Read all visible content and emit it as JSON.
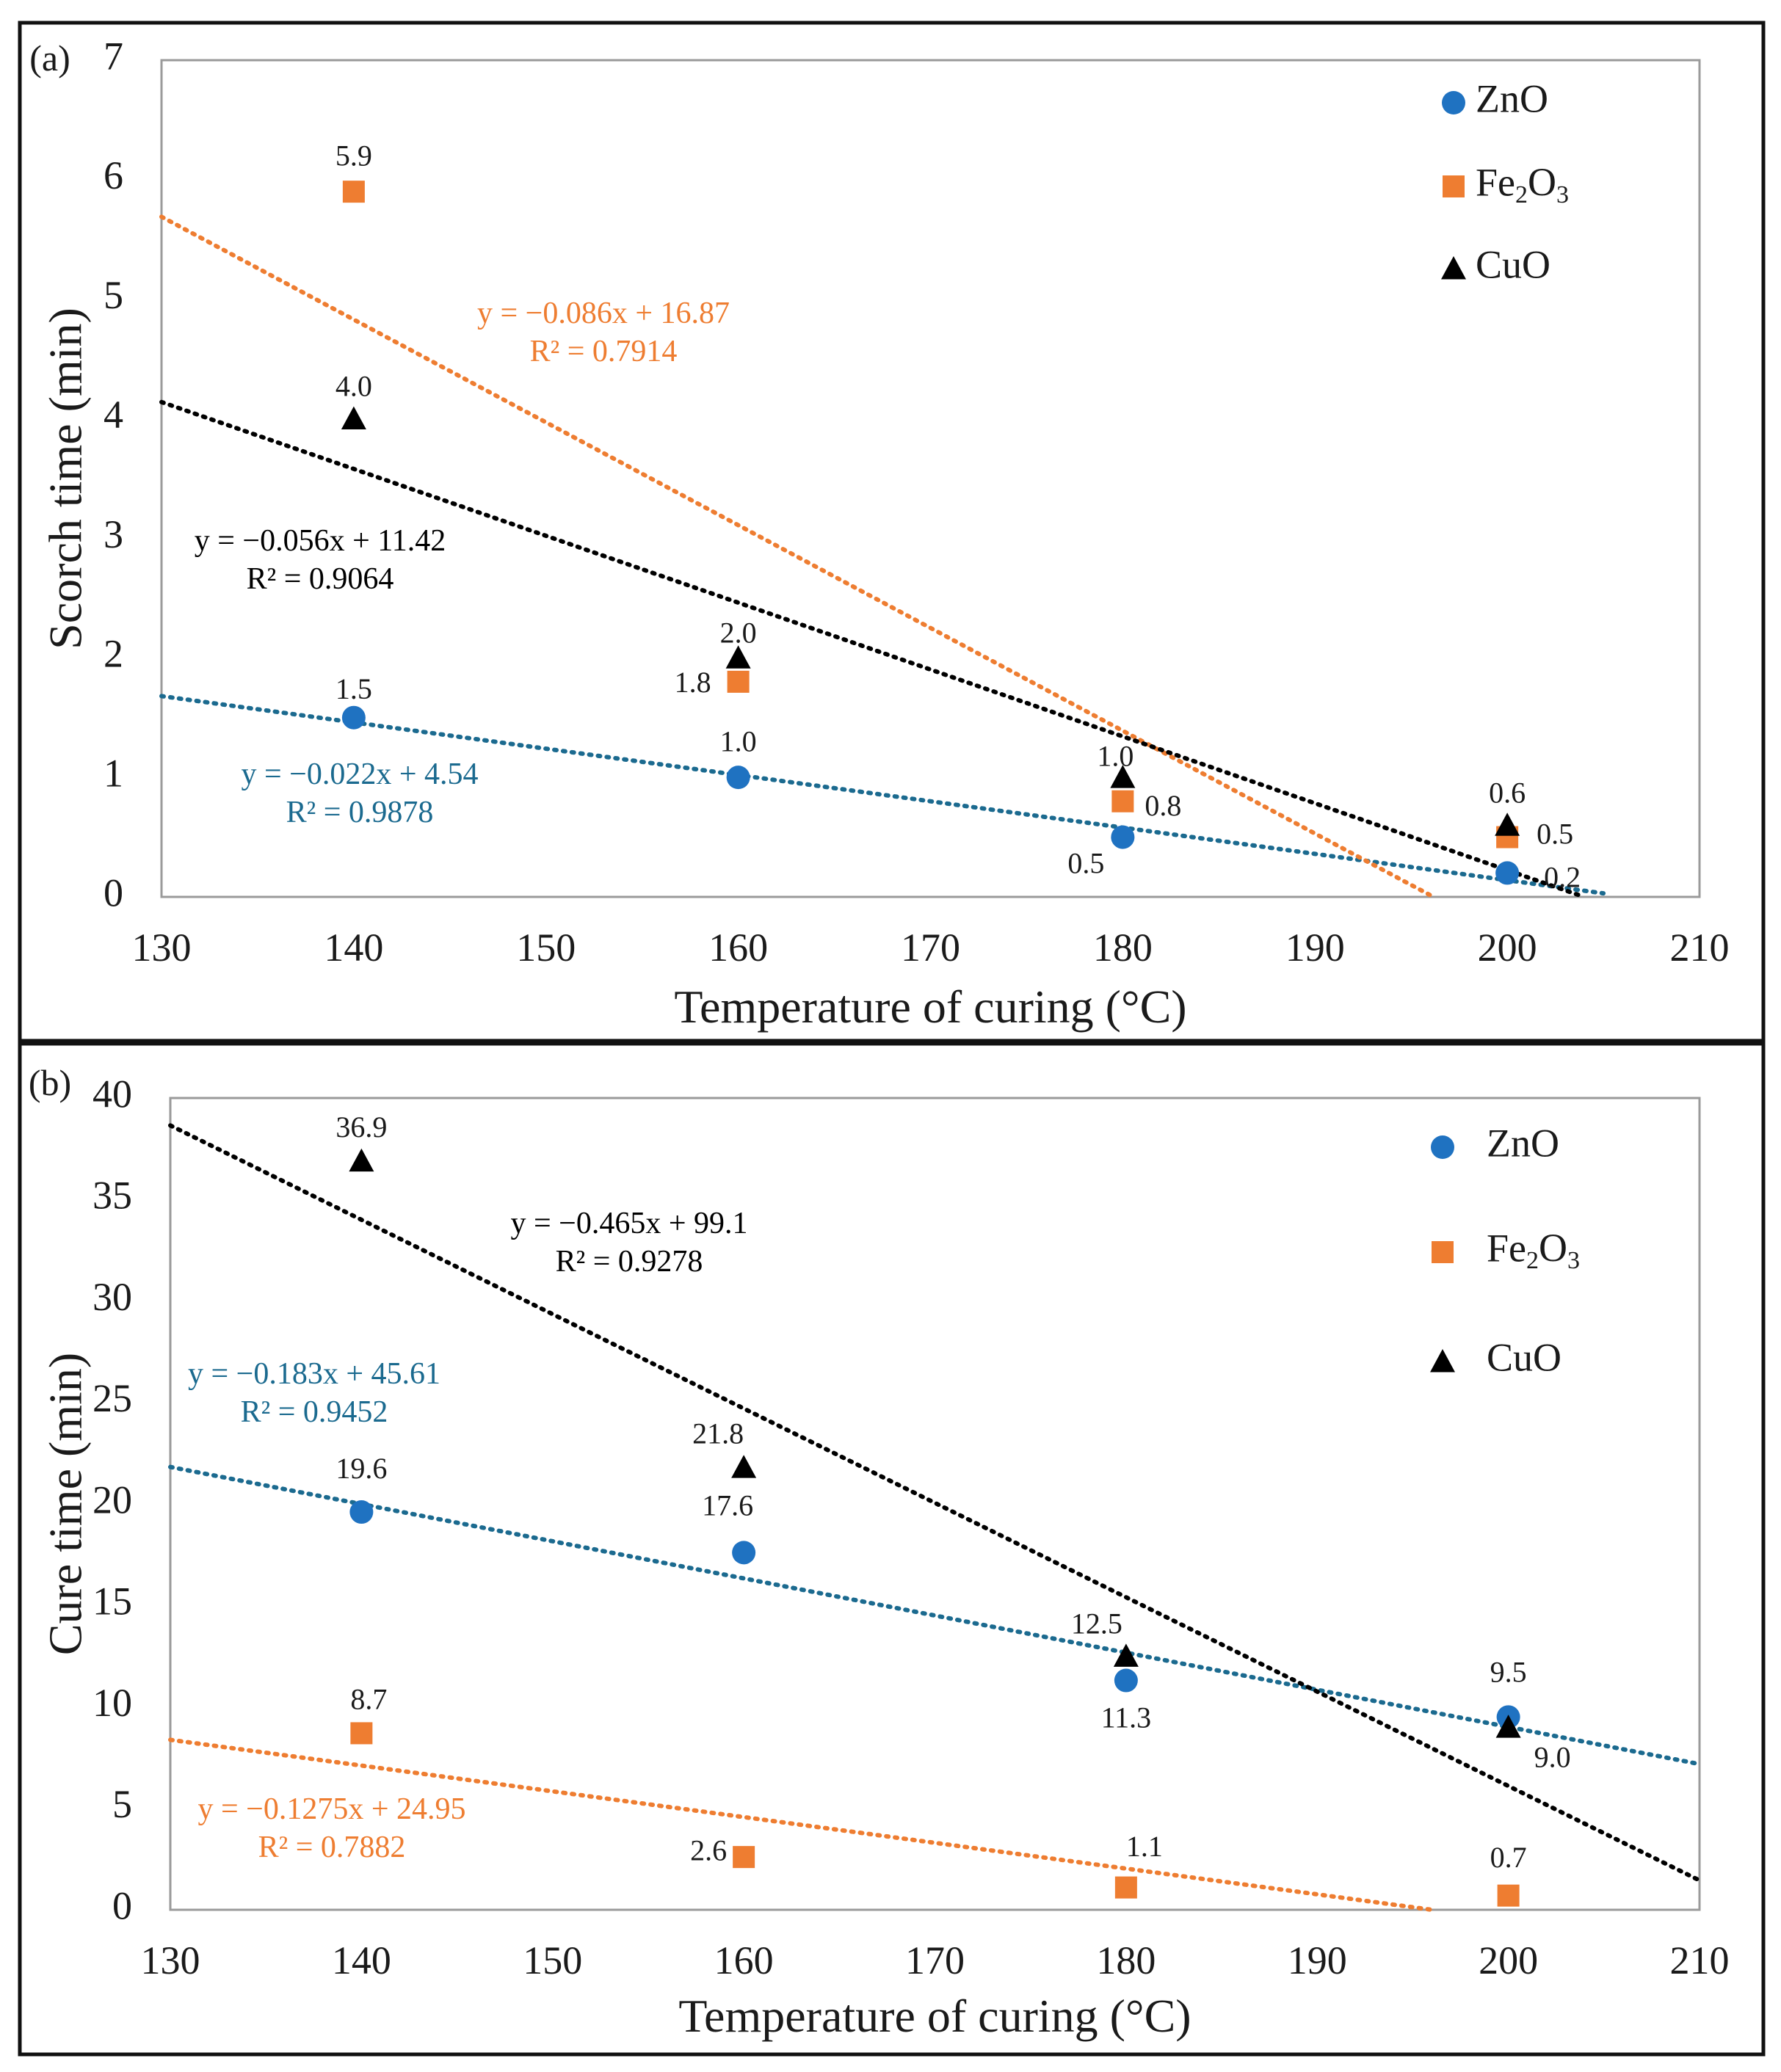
{
  "chart_data": [
    {
      "panel_label": "(a)",
      "type": "scatter",
      "xlabel": "Temperature of curing (°C)",
      "ylabel": "Scorch time (min)",
      "xlim": [
        130,
        210
      ],
      "ylim": [
        0,
        7
      ],
      "x_ticks": [
        "130",
        "140",
        "150",
        "160",
        "170",
        "180",
        "190",
        "200",
        "210"
      ],
      "y_ticks": [
        "0",
        "1",
        "2",
        "3",
        "4",
        "5",
        "6",
        "7"
      ],
      "legend_placement": "top-right",
      "series": [
        {
          "name": "ZnO",
          "name_sub": "",
          "name_tail": "",
          "marker": "circle",
          "color": "#1f72c1",
          "trend_color": "#1b6a8f",
          "x": [
            140,
            160,
            180,
            200
          ],
          "y": [
            1.5,
            1.0,
            0.5,
            0.2
          ],
          "labels": [
            "1.5",
            "1.0",
            "0.5",
            "0.2"
          ],
          "trend": {
            "slope": -0.022,
            "intercept": 4.54,
            "x_start": 130,
            "x_end": 205
          },
          "equation": "y = −0.022x + 4.54",
          "r2": "R² = 0.9878"
        },
        {
          "name": "Fe",
          "name_sub": "2",
          "name_tail": "O",
          "name_sub2": "3",
          "marker": "square",
          "color": "#ee7d31",
          "trend_color": "#ee7d31",
          "x": [
            140,
            160,
            180,
            200
          ],
          "y": [
            5.9,
            1.8,
            0.8,
            0.5
          ],
          "labels": [
            "5.9",
            "1.8",
            "0.8",
            "0.5"
          ],
          "trend": {
            "slope": -0.086,
            "intercept": 16.87,
            "x_start": 130,
            "x_end": 196
          },
          "equation": "y = −0.086x + 16.87",
          "r2": "R² = 0.7914"
        },
        {
          "name": "CuO",
          "name_sub": "",
          "name_tail": "",
          "marker": "triangle",
          "color": "#000000",
          "trend_color": "#000000",
          "x": [
            140,
            160,
            180,
            200
          ],
          "y": [
            4.0,
            2.0,
            1.0,
            0.6
          ],
          "labels": [
            "4.0",
            "2.0",
            "1.0",
            "0.6"
          ],
          "trend": {
            "slope": -0.056,
            "intercept": 11.42,
            "x_start": 130,
            "x_end": 204
          },
          "equation": "y = −0.056x + 11.42",
          "r2": "R² = 0.9064"
        }
      ]
    },
    {
      "panel_label": "(b)",
      "type": "scatter",
      "xlabel": "Temperature of curing (°C)",
      "ylabel": "Cure time (min)",
      "xlim": [
        130,
        210
      ],
      "ylim": [
        0,
        40
      ],
      "x_ticks": [
        "130",
        "140",
        "150",
        "160",
        "170",
        "180",
        "190",
        "200",
        "210"
      ],
      "y_ticks": [
        "0",
        "5",
        "10",
        "15",
        "20",
        "25",
        "30",
        "35",
        "40"
      ],
      "legend_placement": "top-right",
      "series": [
        {
          "name": "ZnO",
          "name_sub": "",
          "name_tail": "",
          "marker": "circle",
          "color": "#1f72c1",
          "trend_color": "#1b6a8f",
          "x": [
            140,
            160,
            180,
            200
          ],
          "y": [
            19.6,
            17.6,
            11.3,
            9.5
          ],
          "labels": [
            "19.6",
            "17.6",
            "11.3",
            "9.5"
          ],
          "trend": {
            "slope": -0.183,
            "intercept": 45.61,
            "x_start": 130,
            "x_end": 210
          },
          "equation": "y = −0.183x + 45.61",
          "r2": "R² = 0.9452"
        },
        {
          "name": "Fe",
          "name_sub": "2",
          "name_tail": "O",
          "name_sub2": "3",
          "marker": "square",
          "color": "#ee7d31",
          "trend_color": "#ee7d31",
          "x": [
            140,
            160,
            180,
            200
          ],
          "y": [
            8.7,
            2.6,
            1.1,
            0.7
          ],
          "labels": [
            "8.7",
            "2.6",
            "1.1",
            "0.7"
          ],
          "trend": {
            "slope": -0.1275,
            "intercept": 24.95,
            "x_start": 130,
            "x_end": 196
          },
          "equation": "y = −0.1275x + 24.95",
          "r2": "R² = 0.7882"
        },
        {
          "name": "CuO",
          "name_sub": "",
          "name_tail": "",
          "marker": "triangle",
          "color": "#000000",
          "trend_color": "#000000",
          "x": [
            140,
            160,
            180,
            200
          ],
          "y": [
            36.9,
            21.8,
            12.5,
            9.0
          ],
          "labels": [
            "36.9",
            "21.8",
            "12.5",
            "9.0"
          ],
          "trend": {
            "slope": -0.465,
            "intercept": 99.1,
            "x_start": 130,
            "x_end": 210
          },
          "equation": "y = −0.465x + 99.1",
          "r2": "R² = 0.9278"
        }
      ]
    }
  ]
}
